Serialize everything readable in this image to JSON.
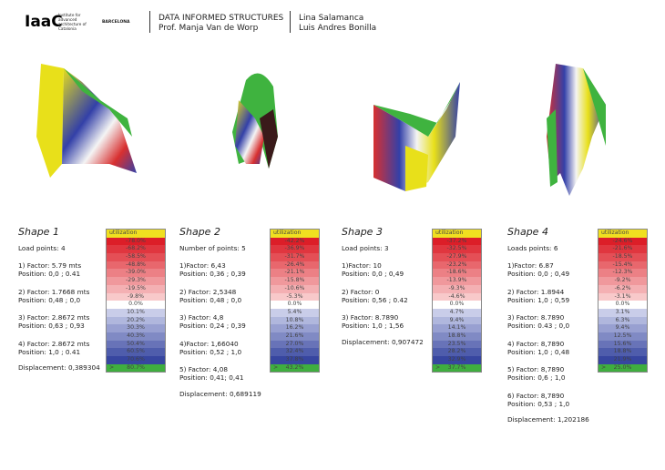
{
  "header": {
    "logo": "IaaC",
    "institute": "Institute for advanced architecture of Catalonia",
    "city": "BARCELONA",
    "course": "DATA INFORMED STRUCTURES",
    "professor": "Prof. Manja Van de Worp",
    "author_1": "Lina Salamanca",
    "author_2": "Luis Andres Bonilla"
  },
  "shapes": [
    {
      "title": "Shape 1",
      "summary": "Load points: 4",
      "loads": [
        {
          "factor": "1) Factor: 5.79 mts",
          "position": "Position: 0,0 ; 0.41"
        },
        {
          "factor": "2) Factor: 1.7668 mts",
          "position": "Position: 0,48 ; 0,0"
        },
        {
          "factor": "3) Factor: 2.8672 mts",
          "position": "Position: 0,63 ; 0,93"
        },
        {
          "factor": "4) Factor: 2.8672 mts",
          "position": "Position: 1,0 ; 0.41"
        }
      ],
      "displacement": "Displacement: 0,389304",
      "legend": {
        "header": "utilization",
        "over_marker": ">",
        "rows": [
          "-78.0%",
          "-68.2%",
          "-58.5%",
          "-48.8%",
          "-39.0%",
          "-29.3%",
          "-19.5%",
          "-9.8%",
          "0.0%",
          "10.1%",
          "20.2%",
          "30.3%",
          "40.3%",
          "50.4%",
          "60.5%",
          "70.6%",
          "80.7%"
        ]
      }
    },
    {
      "title": "Shape 2",
      "summary": "Number of points: 5",
      "loads": [
        {
          "factor": "1)Factor: 6,43",
          "position": "Position: 0,36 ; 0,39"
        },
        {
          "factor": "2) Factor: 2,5348",
          "position": "Position: 0,48 ; 0,0"
        },
        {
          "factor": "3) Factor: 4,8",
          "position": "Position: 0,24 ; 0,39"
        },
        {
          "factor": "4)Factor: 1,66040",
          "position": "Position: 0,52 ; 1,0"
        },
        {
          "factor": "5) Factor: 4,08",
          "position": "Position: 0,41; 0,41"
        }
      ],
      "displacement": "Displacement: 0,689119",
      "legend": {
        "header": "utilization",
        "over_marker": ">",
        "rows": [
          "-42.2%",
          "-36.9%",
          "-31.7%",
          "-26.4%",
          "-21.1%",
          "-15.8%",
          "-10.6%",
          "-5.3%",
          "0.0%",
          "5.4%",
          "10.8%",
          "16.2%",
          "21.6%",
          "27.0%",
          "32.4%",
          "37.8%",
          "43.2%"
        ]
      }
    },
    {
      "title": "Shape 3",
      "summary": "Load points: 3",
      "loads": [
        {
          "factor": "1)Factor: 10",
          "position": "Position: 0,0 ; 0,49"
        },
        {
          "factor": "2) Factor: 0",
          "position": "Position: 0,56 ; 0.42"
        },
        {
          "factor": "3) Factor: 8.7890",
          "position": "Position: 1,0 ; 1,56"
        }
      ],
      "displacement": "Displacement: 0,907472",
      "legend": {
        "header": "utilization",
        "over_marker": ">",
        "rows": [
          "-37.2%",
          "-32.5%",
          "-27.9%",
          "-23.2%",
          "-18.6%",
          "-13.9%",
          "-9.3%",
          "-4.6%",
          "0.0%",
          "4.7%",
          "9.4%",
          "14.1%",
          "18.8%",
          "23.5%",
          "28.2%",
          "32.9%",
          "37.7%"
        ]
      }
    },
    {
      "title": "Shape 4",
      "summary": "Loads points: 6",
      "loads": [
        {
          "factor": "1)Factor: 6.87",
          "position": "Position: 0,0 ; 0,49"
        },
        {
          "factor": "2) Factor: 1.8944",
          "position": "Position: 1,0 ; 0,59"
        },
        {
          "factor": "3) Factor: 8.7890",
          "position": "Position: 0.43 ; 0,0"
        },
        {
          "factor": "4) Factor: 8,7890",
          "position": "Position: 1,0 ; 0,48"
        },
        {
          "factor": "5) Factor: 8,7890",
          "position": "Position: 0,6 ; 1,0"
        },
        {
          "factor": "6) Factor: 8,7890",
          "position": "Position: 0,53 ; 1,0"
        }
      ],
      "displacement": "Displacement: 1,202186",
      "legend": {
        "header": "utilization",
        "over_marker": ">",
        "rows": [
          "-24.6%",
          "-21.6%",
          "-18.5%",
          "-15.4%",
          "-12.3%",
          "-9.2%",
          "-6.2%",
          "-3.1%",
          "0.0%",
          "3.1%",
          "6.3%",
          "9.4%",
          "12.5%",
          "15.6%",
          "18.8%",
          "21.9%",
          "25.0%"
        ]
      }
    }
  ]
}
